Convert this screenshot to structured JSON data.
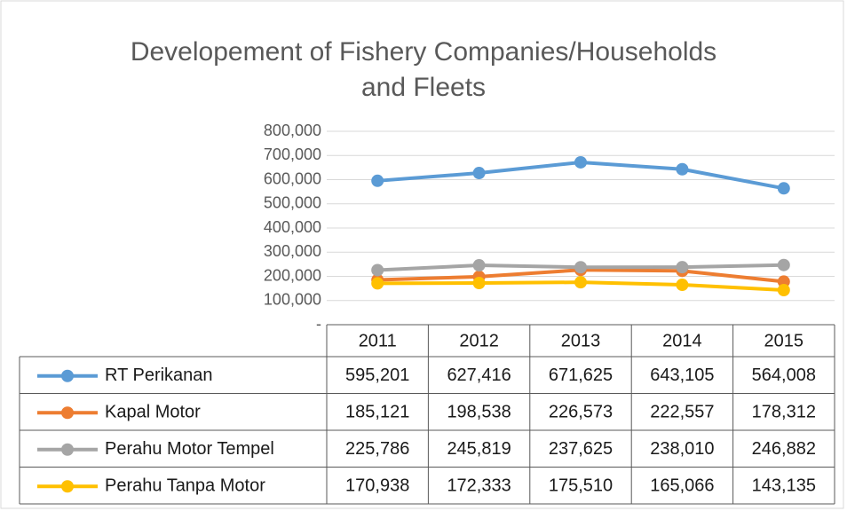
{
  "chart_data": {
    "type": "line",
    "title": "Developement of Fishery Companies/Households and Fleets",
    "categories": [
      "2011",
      "2012",
      "2013",
      "2014",
      "2015"
    ],
    "series": [
      {
        "name": "RT Perikanan",
        "color": "#5b9bd5",
        "values": [
          595201,
          627416,
          671625,
          643105,
          564008
        ],
        "value_labels": [
          "595,201",
          "627,416",
          "671,625",
          "643,105",
          "564,008"
        ]
      },
      {
        "name": "Kapal Motor",
        "color": "#ed7d31",
        "values": [
          185121,
          198538,
          226573,
          222557,
          178312
        ],
        "value_labels": [
          "185,121",
          "198,538",
          "226,573",
          "222,557",
          "178,312"
        ]
      },
      {
        "name": "Perahu Motor Tempel",
        "color": "#a5a5a5",
        "values": [
          225786,
          245819,
          237625,
          238010,
          246882
        ],
        "value_labels": [
          "225,786",
          "245,819",
          "237,625",
          "238,010",
          "246,882"
        ]
      },
      {
        "name": "Perahu Tanpa Motor",
        "color": "#ffc000",
        "values": [
          170938,
          172333,
          175510,
          165066,
          143135
        ],
        "value_labels": [
          "170,938",
          "172,333",
          "175,510",
          "165,066",
          "143,135"
        ]
      }
    ],
    "ylim": [
      0,
      800000
    ],
    "yticks": [
      {
        "value": 0,
        "label": "-"
      },
      {
        "value": 100000,
        "label": "100,000"
      },
      {
        "value": 200000,
        "label": "200,000"
      },
      {
        "value": 300000,
        "label": "300,000"
      },
      {
        "value": 400000,
        "label": "400,000"
      },
      {
        "value": 500000,
        "label": "500,000"
      },
      {
        "value": 600000,
        "label": "600,000"
      },
      {
        "value": 700000,
        "label": "700,000"
      },
      {
        "value": 800000,
        "label": "800,000"
      }
    ],
    "grid": true
  }
}
